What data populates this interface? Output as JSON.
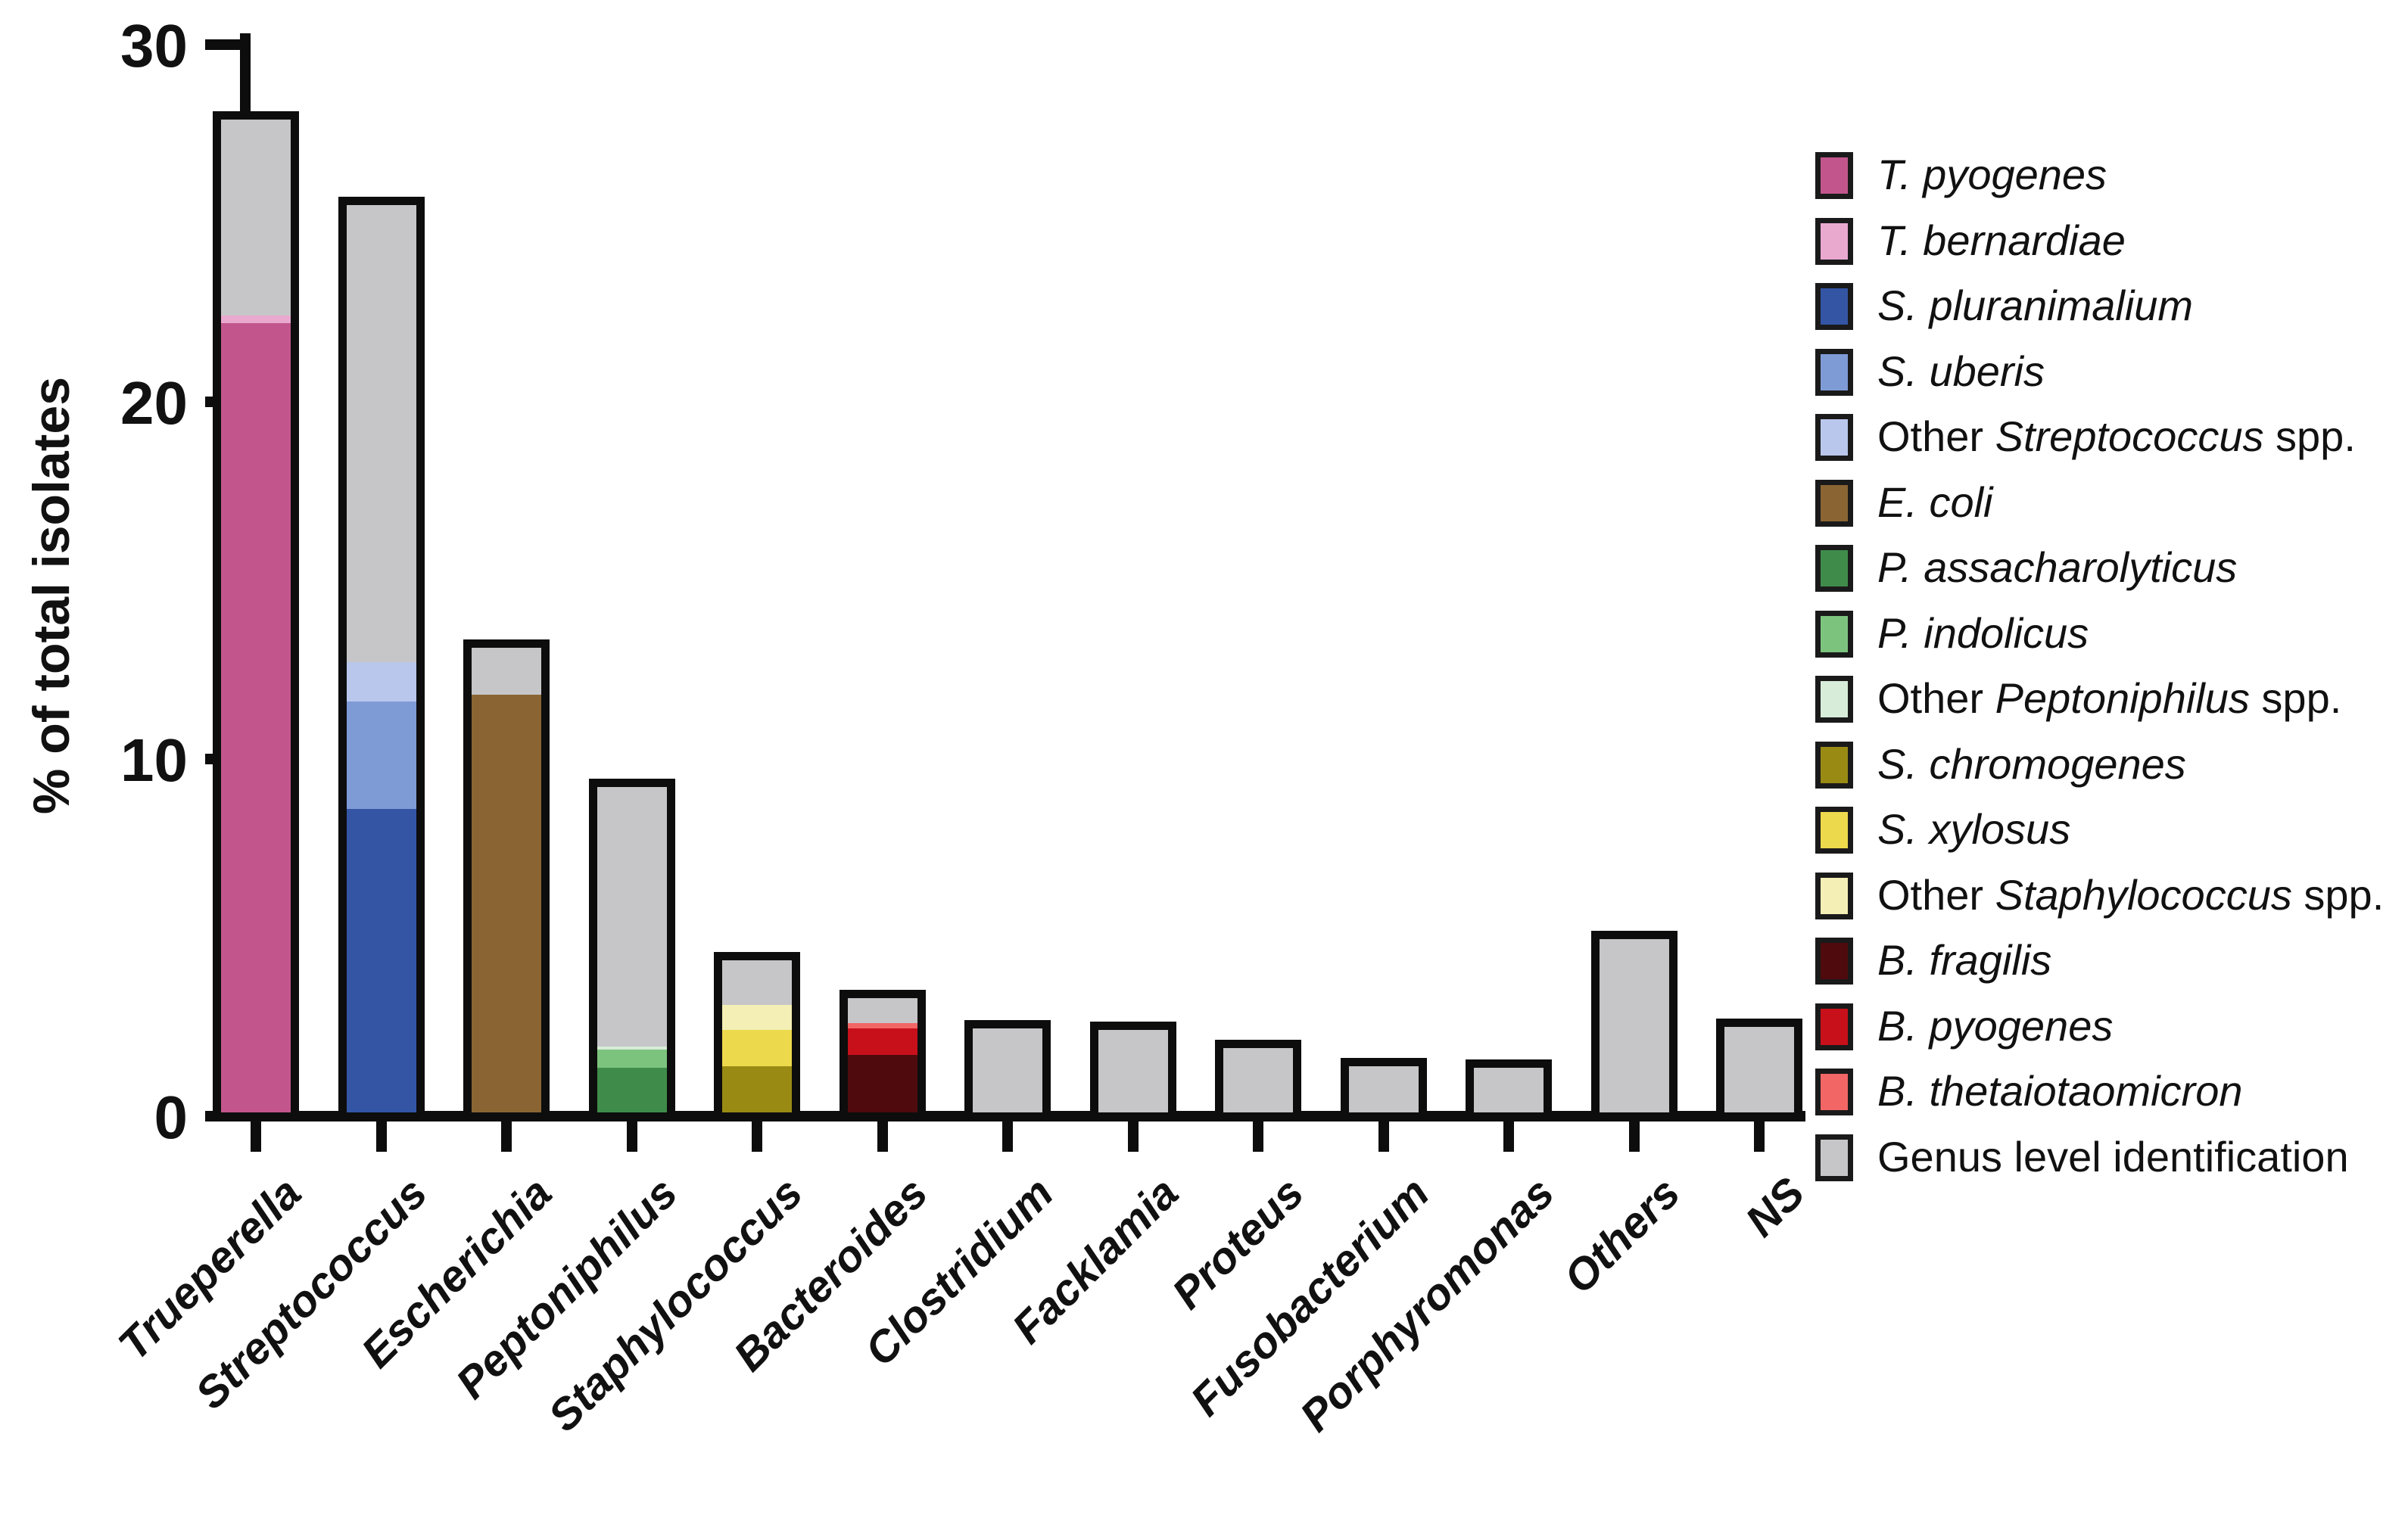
{
  "chart_data": {
    "type": "stacked-bar",
    "title": "",
    "ylabel": "% of total isolates",
    "xlabel": "",
    "ylim": [
      0,
      30
    ],
    "major_ticks": [
      0,
      10,
      20,
      30
    ],
    "minor_tick_step": 2.5,
    "grid": false,
    "legend_position": "right",
    "bar_outline_color": "#0d0d0d",
    "genus_gray": "#c6c6c8",
    "categories": [
      "Trueperella",
      "Streptococcus",
      "Escherichia",
      "Peptoniphilus",
      "Staphylococcus",
      "Bacteroides",
      "Clostridium",
      "Facklamia",
      "Proteus",
      "Fusobacterium",
      "Porphyromonas",
      "Others",
      "NS"
    ],
    "category_totals": [
      27.8,
      25.4,
      13.0,
      9.1,
      4.25,
      3.2,
      2.35,
      2.3,
      1.8,
      1.3,
      1.25,
      4.85,
      2.4
    ],
    "series": [
      {
        "name": "T. pyogenes",
        "color": "#c2568c",
        "values": [
          22.1,
          0,
          0,
          0,
          0,
          0,
          0,
          0,
          0,
          0,
          0,
          0,
          0
        ]
      },
      {
        "name": "T. bernardiae",
        "color": "#e9a9cf",
        "values": [
          0.2,
          0,
          0,
          0,
          0,
          0,
          0,
          0,
          0,
          0,
          0,
          0,
          0
        ]
      },
      {
        "name": "S. pluranimalium",
        "color": "#3355a4",
        "values": [
          0,
          8.5,
          0,
          0,
          0,
          0,
          0,
          0,
          0,
          0,
          0,
          0,
          0
        ]
      },
      {
        "name": "S. uberis",
        "color": "#7f9bd6",
        "values": [
          0,
          3,
          0,
          0,
          0,
          0,
          0,
          0,
          0,
          0,
          0,
          0,
          0
        ]
      },
      {
        "name": "Other Streptococcus spp.",
        "color": "#b9c7ec",
        "values": [
          0,
          1.1,
          0,
          0,
          0,
          0,
          0,
          0,
          0,
          0,
          0,
          0,
          0
        ]
      },
      {
        "name": "E. coli",
        "color": "#8a6533",
        "values": [
          0,
          0,
          11.7,
          0,
          0,
          0,
          0,
          0,
          0,
          0,
          0,
          0,
          0
        ]
      },
      {
        "name": "P. assacharolyticus",
        "color": "#3f8c4a",
        "values": [
          0,
          0,
          0,
          1.25,
          0,
          0,
          0,
          0,
          0,
          0,
          0,
          0,
          0
        ]
      },
      {
        "name": "P. indolicus",
        "color": "#7cc47e",
        "values": [
          0,
          0,
          0,
          0.5,
          0,
          0,
          0,
          0,
          0,
          0,
          0,
          0,
          0
        ]
      },
      {
        "name": "Other Peptoniphilus spp.",
        "color": "#d7ecd9",
        "values": [
          0,
          0,
          0,
          0.1,
          0,
          0,
          0,
          0,
          0,
          0,
          0,
          0,
          0
        ]
      },
      {
        "name": "S. chromogenes",
        "color": "#998a14",
        "values": [
          0,
          0,
          0,
          0,
          1.3,
          0,
          0,
          0,
          0,
          0,
          0,
          0,
          0
        ]
      },
      {
        "name": "S. xylosus",
        "color": "#edd94c",
        "values": [
          0,
          0,
          0,
          0,
          1,
          0,
          0,
          0,
          0,
          0,
          0,
          0,
          0
        ]
      },
      {
        "name": "Other Staphylococcus spp.",
        "color": "#f4efb5",
        "values": [
          0,
          0,
          0,
          0,
          0.7,
          0,
          0,
          0,
          0,
          0,
          0,
          0,
          0
        ]
      },
      {
        "name": "B. fragilis",
        "color": "#4f0a0d",
        "values": [
          0,
          0,
          0,
          0,
          0,
          1.6,
          0,
          0,
          0,
          0,
          0,
          0,
          0
        ]
      },
      {
        "name": "B. pyogenes",
        "color": "#c8101a",
        "values": [
          0,
          0,
          0,
          0,
          0,
          0.75,
          0,
          0,
          0,
          0,
          0,
          0,
          0
        ]
      },
      {
        "name": "B. thetaiotaomicron",
        "color": "#f26666",
        "values": [
          0,
          0,
          0,
          0,
          0,
          0.15,
          0,
          0,
          0,
          0,
          0,
          0,
          0
        ]
      },
      {
        "name": "Genus level identification",
        "color": "#c6c6c8",
        "values": [
          5.5,
          12.8,
          1.3,
          7.25,
          1.25,
          0.7,
          2.35,
          2.3,
          1.8,
          1.3,
          1.25,
          4.85,
          2.4
        ]
      }
    ],
    "legend": [
      {
        "pre": "",
        "it": "T. pyogenes",
        "post": ""
      },
      {
        "pre": "",
        "it": "T. bernardiae",
        "post": ""
      },
      {
        "pre": "",
        "it": "S. pluranimalium",
        "post": ""
      },
      {
        "pre": "",
        "it": "S. uberis",
        "post": ""
      },
      {
        "pre": "Other ",
        "it": "Streptococcus",
        "post": " spp."
      },
      {
        "pre": "",
        "it": "E. coli",
        "post": ""
      },
      {
        "pre": "",
        "it": "P. assacharolyticus",
        "post": ""
      },
      {
        "pre": "",
        "it": "P. indolicus",
        "post": ""
      },
      {
        "pre": "Other ",
        "it": "Peptoniphilus",
        "post": " spp."
      },
      {
        "pre": "",
        "it": "S. chromogenes",
        "post": ""
      },
      {
        "pre": "",
        "it": "S. xylosus",
        "post": ""
      },
      {
        "pre": "Other ",
        "it": "Staphylococcus",
        "post": " spp."
      },
      {
        "pre": "",
        "it": "B. fragilis",
        "post": ""
      },
      {
        "pre": "",
        "it": "B. pyogenes",
        "post": ""
      },
      {
        "pre": "",
        "it": "B. thetaiotaomicron",
        "post": ""
      },
      {
        "pre": "Genus level identification",
        "it": "",
        "post": ""
      }
    ]
  }
}
